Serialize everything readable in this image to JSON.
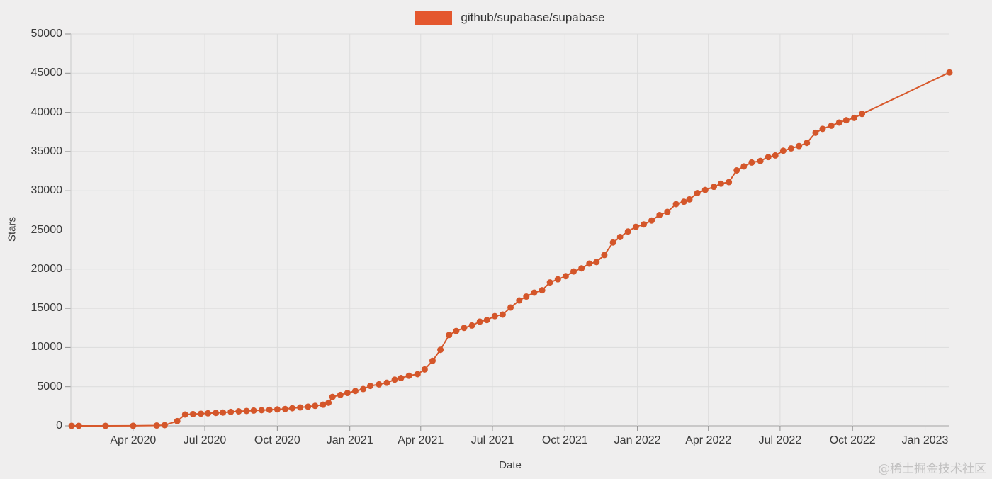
{
  "legend": {
    "label": "github/supabase/supabase",
    "swatch_color": "#e4572e"
  },
  "watermark": "@稀土掘金技术社区",
  "colors": {
    "line": "#d7582b",
    "marker": "#d4562a",
    "grid": "#dcdcdc",
    "axis_line": "#c9c9c9",
    "zero_line": "#a3a3a3",
    "tick": "#8f8f8f",
    "background": "#efeeee"
  },
  "chart_data": {
    "type": "line",
    "title": "github/supabase/supabase",
    "xlabel": "Date",
    "ylabel": "Stars",
    "ylim": [
      0,
      50000
    ],
    "y_ticks": [
      0,
      5000,
      10000,
      15000,
      20000,
      25000,
      30000,
      35000,
      40000,
      45000,
      50000
    ],
    "x_domain": [
      "2020-01-13",
      "2023-02-01"
    ],
    "x_ticks": [
      {
        "date": "2020-04-01",
        "label": "Apr 2020"
      },
      {
        "date": "2020-07-01",
        "label": "Jul 2020"
      },
      {
        "date": "2020-10-01",
        "label": "Oct 2020"
      },
      {
        "date": "2021-01-01",
        "label": "Jan 2021"
      },
      {
        "date": "2021-04-01",
        "label": "Apr 2021"
      },
      {
        "date": "2021-07-01",
        "label": "Jul 2021"
      },
      {
        "date": "2021-10-01",
        "label": "Oct 2021"
      },
      {
        "date": "2022-01-01",
        "label": "Jan 2022"
      },
      {
        "date": "2022-04-01",
        "label": "Apr 2022"
      },
      {
        "date": "2022-07-01",
        "label": "Jul 2022"
      },
      {
        "date": "2022-10-01",
        "label": "Oct 2022"
      },
      {
        "date": "2023-01-01",
        "label": "Jan 2023"
      }
    ],
    "grid": true,
    "legend_position": "top-center",
    "series": [
      {
        "name": "github/supabase/supabase",
        "points": [
          [
            "2020-01-14",
            0
          ],
          [
            "2020-01-23",
            0
          ],
          [
            "2020-02-26",
            0
          ],
          [
            "2020-04-01",
            10
          ],
          [
            "2020-05-01",
            40
          ],
          [
            "2020-05-11",
            90
          ],
          [
            "2020-05-27",
            600
          ],
          [
            "2020-06-06",
            1450
          ],
          [
            "2020-06-16",
            1500
          ],
          [
            "2020-06-26",
            1550
          ],
          [
            "2020-07-05",
            1600
          ],
          [
            "2020-07-15",
            1650
          ],
          [
            "2020-07-24",
            1700
          ],
          [
            "2020-08-03",
            1780
          ],
          [
            "2020-08-13",
            1850
          ],
          [
            "2020-08-23",
            1900
          ],
          [
            "2020-09-01",
            1950
          ],
          [
            "2020-09-11",
            2000
          ],
          [
            "2020-09-21",
            2050
          ],
          [
            "2020-10-01",
            2100
          ],
          [
            "2020-10-11",
            2150
          ],
          [
            "2020-10-20",
            2250
          ],
          [
            "2020-10-30",
            2350
          ],
          [
            "2020-11-09",
            2450
          ],
          [
            "2020-11-18",
            2550
          ],
          [
            "2020-11-28",
            2700
          ],
          [
            "2020-12-05",
            2950
          ],
          [
            "2020-12-10",
            3700
          ],
          [
            "2020-12-20",
            3950
          ],
          [
            "2020-12-29",
            4200
          ],
          [
            "2021-01-08",
            4450
          ],
          [
            "2021-01-18",
            4700
          ],
          [
            "2021-01-27",
            5100
          ],
          [
            "2021-02-07",
            5300
          ],
          [
            "2021-02-17",
            5500
          ],
          [
            "2021-02-27",
            5900
          ],
          [
            "2021-03-07",
            6100
          ],
          [
            "2021-03-17",
            6400
          ],
          [
            "2021-03-28",
            6600
          ],
          [
            "2021-04-06",
            7200
          ],
          [
            "2021-04-16",
            8300
          ],
          [
            "2021-04-26",
            9700
          ],
          [
            "2021-05-07",
            11600
          ],
          [
            "2021-05-16",
            12100
          ],
          [
            "2021-05-26",
            12500
          ],
          [
            "2021-06-05",
            12800
          ],
          [
            "2021-06-15",
            13300
          ],
          [
            "2021-06-24",
            13500
          ],
          [
            "2021-07-04",
            14000
          ],
          [
            "2021-07-14",
            14200
          ],
          [
            "2021-07-24",
            15100
          ],
          [
            "2021-08-04",
            16000
          ],
          [
            "2021-08-13",
            16500
          ],
          [
            "2021-08-23",
            17000
          ],
          [
            "2021-09-02",
            17300
          ],
          [
            "2021-09-12",
            18300
          ],
          [
            "2021-09-22",
            18700
          ],
          [
            "2021-10-02",
            19100
          ],
          [
            "2021-10-12",
            19700
          ],
          [
            "2021-10-22",
            20100
          ],
          [
            "2021-11-01",
            20700
          ],
          [
            "2021-11-10",
            20900
          ],
          [
            "2021-11-20",
            21800
          ],
          [
            "2021-12-01",
            23400
          ],
          [
            "2021-12-10",
            24100
          ],
          [
            "2021-12-20",
            24800
          ],
          [
            "2021-12-30",
            25400
          ],
          [
            "2022-01-09",
            25700
          ],
          [
            "2022-01-19",
            26200
          ],
          [
            "2022-01-29",
            26900
          ],
          [
            "2022-02-08",
            27300
          ],
          [
            "2022-02-19",
            28300
          ],
          [
            "2022-03-01",
            28600
          ],
          [
            "2022-03-08",
            28900
          ],
          [
            "2022-03-18",
            29700
          ],
          [
            "2022-03-28",
            30100
          ],
          [
            "2022-04-08",
            30500
          ],
          [
            "2022-04-17",
            30900
          ],
          [
            "2022-04-27",
            31100
          ],
          [
            "2022-05-07",
            32600
          ],
          [
            "2022-05-16",
            33100
          ],
          [
            "2022-05-26",
            33600
          ],
          [
            "2022-06-06",
            33800
          ],
          [
            "2022-06-16",
            34300
          ],
          [
            "2022-06-25",
            34500
          ],
          [
            "2022-07-05",
            35100
          ],
          [
            "2022-07-15",
            35400
          ],
          [
            "2022-07-25",
            35700
          ],
          [
            "2022-08-04",
            36100
          ],
          [
            "2022-08-15",
            37400
          ],
          [
            "2022-08-24",
            37900
          ],
          [
            "2022-09-04",
            38300
          ],
          [
            "2022-09-14",
            38700
          ],
          [
            "2022-09-23",
            39000
          ],
          [
            "2022-10-03",
            39300
          ],
          [
            "2022-10-13",
            39800
          ],
          [
            "2023-02-01",
            45100
          ]
        ]
      }
    ]
  }
}
